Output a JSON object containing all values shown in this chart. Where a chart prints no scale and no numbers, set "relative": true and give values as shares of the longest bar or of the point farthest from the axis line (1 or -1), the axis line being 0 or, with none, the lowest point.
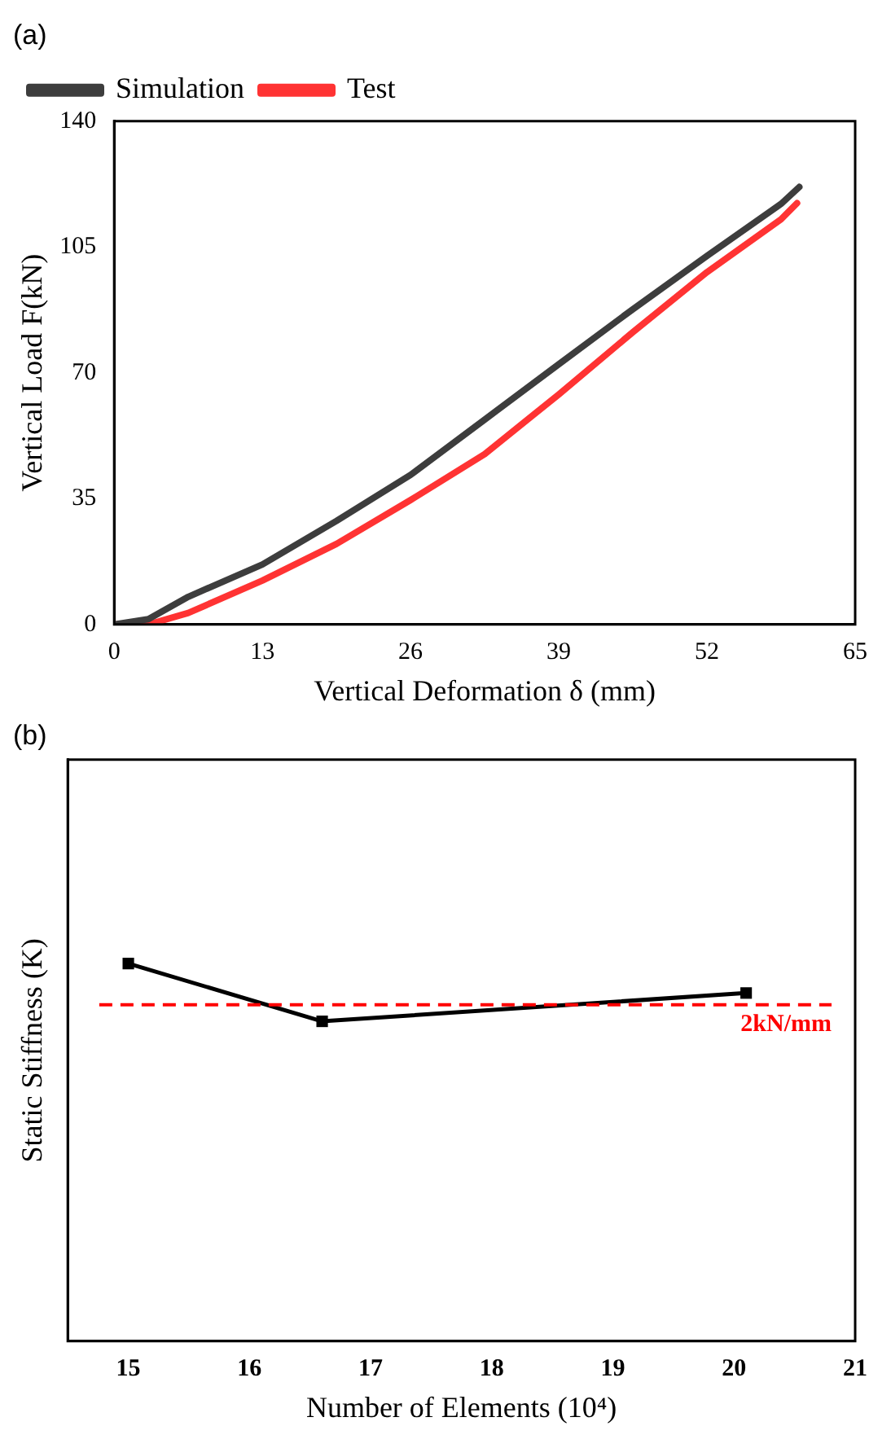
{
  "chart_data": [
    {
      "type": "line",
      "title": "(a)",
      "xlabel": "Vertical Deformation δ (mm)",
      "ylabel": "Vertical Load F(kN)",
      "xlim": [
        0,
        65
      ],
      "xticks": [
        0,
        13,
        26,
        39,
        52,
        65
      ],
      "ylim": [
        0,
        140
      ],
      "yticks": [
        0,
        35,
        70,
        105,
        140
      ],
      "legend": "top left",
      "marker": "none",
      "line_style": "solid",
      "grid": false,
      "series": [
        {
          "name": "Simulation",
          "color": "#3d3d3d",
          "x": [
            0,
            3,
            6.5,
            13,
            19.5,
            26,
            32.5,
            39,
            45.5,
            52,
            58.5,
            60.1
          ],
          "values": [
            0,
            1.5,
            7.7,
            16.7,
            28.8,
            41.6,
            57,
            72.4,
            87.7,
            102.5,
            117,
            121.7
          ]
        },
        {
          "name": "Test",
          "color": "#ff3333",
          "x": [
            0,
            3,
            6.5,
            13,
            19.5,
            26,
            32.5,
            39,
            45.5,
            52,
            58.5,
            59.9
          ],
          "values": [
            0,
            0,
            3.2,
            12.2,
            22.4,
            34.6,
            47.4,
            64,
            81.3,
            98,
            112.7,
            117.2
          ]
        }
      ]
    },
    {
      "type": "line",
      "title": "(b)",
      "xlabel": "Number of Elements (10⁴)",
      "ylabel": "Static Stiffness (K)",
      "xlim": [
        14.5,
        21
      ],
      "xticks": [
        15,
        16,
        17,
        18,
        19,
        20,
        21
      ],
      "relative": true,
      "tick_labels": "x",
      "marker": "square",
      "line_style": "solid",
      "grid": false,
      "legend": false,
      "series": [
        {
          "color": "#000000",
          "x": [
            15,
            16.6,
            20.1
          ],
          "values": [
            1,
            0.847,
            0.922
          ]
        }
      ],
      "ref_lines": [
        {
          "axis": "y",
          "value": 0.891,
          "label": "2kN/mm",
          "color": "#ff0000",
          "line_style": "dashed"
        }
      ]
    }
  ]
}
